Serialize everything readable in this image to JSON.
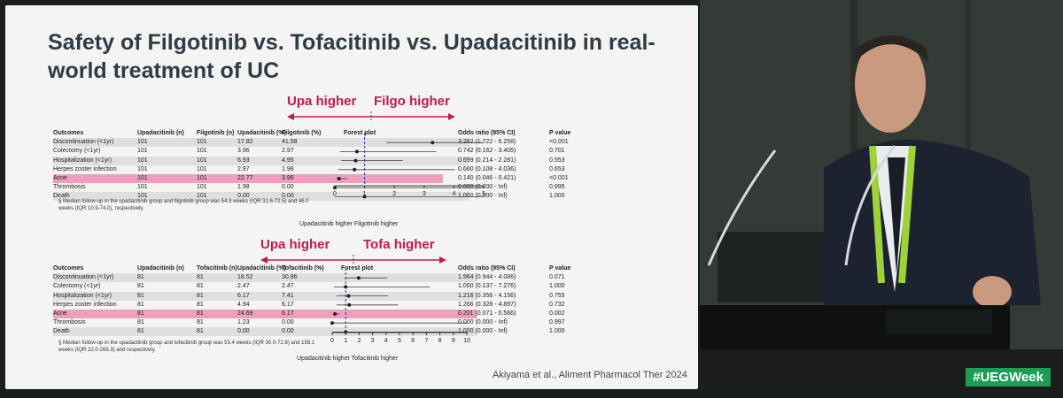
{
  "slide": {
    "title": "Safety of Filgotinib vs. Tofacitinib vs. Upadacitinib in real-world treatment of UC",
    "citation": "Akiyama et al., Aliment Pharmacol Ther 2024"
  },
  "stage": {
    "hashtag": "#UEGWeek"
  },
  "tables": [
    {
      "left_label": "Upa higher",
      "right_label": "Filgo higher",
      "headers": [
        "Outcomes",
        "Upadacitinib (n)",
        "Filgotinib (n)",
        "Upadacitinib (%)",
        "Filgotinib (%)",
        "Forest plot",
        "Odds ratio (95% CI)",
        "P value"
      ],
      "rows": [
        {
          "outcome": "Discontinuation (<1yr)",
          "n1": "101",
          "n2": "101",
          "p1": "17.82",
          "p2": "41.58",
          "or": "3.282 (1.722 - 6.258)",
          "p": "<0.001",
          "or_val": 3.282,
          "lo": 1.722,
          "hi": 6.258
        },
        {
          "outcome": "Colectomy (<1yr)",
          "n1": "101",
          "n2": "101",
          "p1": "3.96",
          "p2": "2.97",
          "or": "0.742 (0.162 - 3.405)",
          "p": "0.701",
          "or_val": 0.742,
          "lo": 0.162,
          "hi": 3.405
        },
        {
          "outcome": "Hospitalization (<1yr)",
          "n1": "101",
          "n2": "101",
          "p1": "6.93",
          "p2": "4.95",
          "or": "0.699 (0.214 - 2.281)",
          "p": "0.553",
          "or_val": 0.699,
          "lo": 0.214,
          "hi": 2.281
        },
        {
          "outcome": "Herpes zoster infection",
          "n1": "101",
          "n2": "101",
          "p1": "2.97",
          "p2": "1.98",
          "or": "0.660 (0.108 - 4.036)",
          "p": "0.653",
          "or_val": 0.66,
          "lo": 0.108,
          "hi": 4.036
        },
        {
          "outcome": "Acne",
          "n1": "101",
          "n2": "101",
          "p1": "22.77",
          "p2": "3.96",
          "or": "0.140 (0.046 - 0.421)",
          "p": "<0.001",
          "or_val": 0.14,
          "lo": 0.046,
          "hi": 0.421,
          "highlight": true
        },
        {
          "outcome": "Thrombosis",
          "n1": "101",
          "n2": "101",
          "p1": "1.98",
          "p2": "0.00",
          "or": "0.000 (0.000 - Inf)",
          "p": "0.995",
          "or_val": 0,
          "lo": 0,
          "hi": 5
        },
        {
          "outcome": "Death",
          "n1": "101",
          "n2": "101",
          "p1": "0.00",
          "p2": "0.00",
          "or": "1.000 (0.000 - Inf)",
          "p": "1.000",
          "or_val": 1,
          "lo": 0,
          "hi": 5
        }
      ],
      "axis_ticks": [
        "0",
        "1",
        "2",
        "3",
        "4",
        "5"
      ],
      "axis_max": 5,
      "x_caption": "Upadacitinib higher   Filgotinib higher",
      "note": "§ Median follow-up in the upadacitinib group and filgotinib group was 54.3 weeks (IQR 31.6-72.5) and 46.0 weeks (IQR 10.9-74.0), respectively."
    },
    {
      "left_label": "Upa higher",
      "right_label": "Tofa higher",
      "headers": [
        "Outcomes",
        "Upadacitinib (n)",
        "Tofacitinib (n)",
        "Upadacitinib (%)",
        "Tofacitinib (%)",
        "Forest plot",
        "Odds ratio (95% CI)",
        "P value"
      ],
      "rows": [
        {
          "outcome": "Discontinuation (<1yr)",
          "n1": "81",
          "n2": "81",
          "p1": "18.52",
          "p2": "30.86",
          "or": "1.964 (0.944 - 4.086)",
          "p": "0.071",
          "or_val": 1.964,
          "lo": 0.944,
          "hi": 4.086
        },
        {
          "outcome": "Colectomy (<1yr)",
          "n1": "81",
          "n2": "81",
          "p1": "2.47",
          "p2": "2.47",
          "or": "1.000 (0.137 - 7.276)",
          "p": "1.000",
          "or_val": 1,
          "lo": 0.137,
          "hi": 7.276
        },
        {
          "outcome": "Hospitalization (<1yr)",
          "n1": "81",
          "n2": "81",
          "p1": "6.17",
          "p2": "7.41",
          "or": "1.216 (0.356 - 4.156)",
          "p": "0.755",
          "or_val": 1.216,
          "lo": 0.356,
          "hi": 4.156
        },
        {
          "outcome": "Herpes zoster infection",
          "n1": "81",
          "n2": "81",
          "p1": "4.94",
          "p2": "6.17",
          "or": "1.266 (0.328 - 4.897)",
          "p": "0.732",
          "or_val": 1.266,
          "lo": 0.328,
          "hi": 4.897
        },
        {
          "outcome": "Acne",
          "n1": "81",
          "n2": "81",
          "p1": "24.69",
          "p2": "6.17",
          "or": "0.201 (0.071 - 0.566)",
          "p": "0.002",
          "or_val": 0.201,
          "lo": 0.071,
          "hi": 0.566,
          "highlight": true
        },
        {
          "outcome": "Thrombosis",
          "n1": "81",
          "n2": "81",
          "p1": "1.23",
          "p2": "0.00",
          "or": "0.000 (0.000 - Inf)",
          "p": "0.997",
          "or_val": 0,
          "lo": 0,
          "hi": 10
        },
        {
          "outcome": "Death",
          "n1": "81",
          "n2": "81",
          "p1": "0.00",
          "p2": "0.00",
          "or": "1.000 (0.000 - Inf)",
          "p": "1.000",
          "or_val": 1,
          "lo": 0,
          "hi": 10
        }
      ],
      "axis_ticks": [
        "0",
        "1",
        "2",
        "3",
        "4",
        "5",
        "6",
        "7",
        "8",
        "9",
        "10"
      ],
      "axis_max": 10,
      "x_caption": "Upadacitinib higher   Tofacitinib higher",
      "note": "§ Median follow-up in the upadacitinib group and tofacitinib group was 53.4 weeks (IQR 30.0-72.8) and 158.1 weeks (IQR 22.0-265.3) and respectively."
    }
  ]
}
